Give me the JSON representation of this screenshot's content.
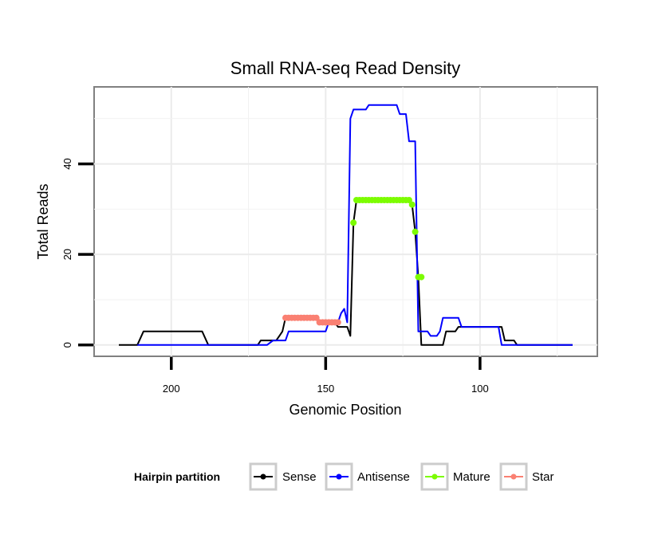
{
  "chart_data": {
    "type": "line",
    "title": "Small RNA-seq Read Density",
    "xlabel": "Genomic Position",
    "ylabel": "Total Reads",
    "xlim": [
      225,
      62
    ],
    "ylim": [
      -2.5,
      57
    ],
    "x_reversed": true,
    "x_ticks": [
      200,
      150,
      100
    ],
    "x_tick_labels": [
      "200",
      "150",
      "100"
    ],
    "y_ticks": [
      0,
      20,
      40
    ],
    "y_tick_labels": [
      "0",
      "20",
      "40"
    ],
    "grid": true,
    "legend": {
      "title": "Hairpin partition",
      "position": "bottom",
      "entries": [
        {
          "name": "Sense",
          "color": "#000000"
        },
        {
          "name": "Antisense",
          "color": "#0000ff"
        },
        {
          "name": "Mature",
          "color": "#7cfc00"
        },
        {
          "name": "Star",
          "color": "#fa8072"
        }
      ]
    },
    "series": [
      {
        "name": "Sense",
        "color": "#000000",
        "style": "line",
        "points": [
          [
            217,
            0
          ],
          [
            211,
            0
          ],
          [
            209,
            3
          ],
          [
            190,
            3
          ],
          [
            188,
            0
          ],
          [
            172,
            0
          ],
          [
            171,
            1
          ],
          [
            166,
            1
          ],
          [
            165,
            2
          ],
          [
            164,
            3
          ],
          [
            163,
            6
          ],
          [
            153,
            6
          ],
          [
            152,
            5
          ],
          [
            147,
            5
          ],
          [
            146,
            4
          ],
          [
            144,
            4
          ],
          [
            143,
            4
          ],
          [
            142,
            2
          ],
          [
            141,
            27
          ],
          [
            140,
            32
          ],
          [
            123,
            32
          ],
          [
            122,
            31
          ],
          [
            121,
            25
          ],
          [
            120,
            15
          ],
          [
            119,
            0
          ],
          [
            112,
            0
          ],
          [
            111,
            3
          ],
          [
            108,
            3
          ],
          [
            107,
            4
          ],
          [
            93,
            4
          ],
          [
            92,
            1
          ],
          [
            89,
            1
          ],
          [
            88,
            0
          ],
          [
            70,
            0
          ]
        ]
      },
      {
        "name": "Antisense",
        "color": "#0000ff",
        "style": "line",
        "points": [
          [
            211,
            0
          ],
          [
            180,
            0
          ],
          [
            170,
            0
          ],
          [
            169,
            0
          ],
          [
            167,
            1
          ],
          [
            163,
            1
          ],
          [
            162,
            3
          ],
          [
            150,
            3
          ],
          [
            149,
            5
          ],
          [
            146,
            5
          ],
          [
            145,
            7
          ],
          [
            144,
            8
          ],
          [
            143,
            5
          ],
          [
            142,
            50
          ],
          [
            141,
            52
          ],
          [
            137,
            52
          ],
          [
            136,
            53
          ],
          [
            127,
            53
          ],
          [
            126,
            51
          ],
          [
            124,
            51
          ],
          [
            123,
            45
          ],
          [
            121,
            45
          ],
          [
            120,
            3
          ],
          [
            117,
            3
          ],
          [
            116,
            2
          ],
          [
            114,
            2
          ],
          [
            113,
            3
          ],
          [
            112,
            6
          ],
          [
            107,
            6
          ],
          [
            106,
            4
          ],
          [
            95,
            4
          ],
          [
            94,
            4
          ],
          [
            93,
            0
          ],
          [
            70,
            0
          ]
        ]
      },
      {
        "name": "Mature",
        "color": "#7cfc00",
        "style": "points",
        "x": [
          141,
          140,
          139,
          138,
          137,
          136,
          135,
          134,
          133,
          132,
          131,
          130,
          129,
          128,
          127,
          126,
          125,
          124,
          123,
          122,
          121,
          120,
          119
        ],
        "y": [
          27,
          32,
          32,
          32,
          32,
          32,
          32,
          32,
          32,
          32,
          32,
          32,
          32,
          32,
          32,
          32,
          32,
          32,
          32,
          31,
          25,
          15,
          15
        ]
      },
      {
        "name": "Star",
        "color": "#fa8072",
        "style": "points",
        "x": [
          163,
          162,
          161,
          160,
          159,
          158,
          157,
          156,
          155,
          154,
          153,
          152,
          151,
          150,
          149,
          148,
          147,
          146
        ],
        "y": [
          6,
          6,
          6,
          6,
          6,
          6,
          6,
          6,
          6,
          6,
          6,
          5,
          5,
          5,
          5,
          5,
          5,
          5
        ]
      }
    ]
  }
}
